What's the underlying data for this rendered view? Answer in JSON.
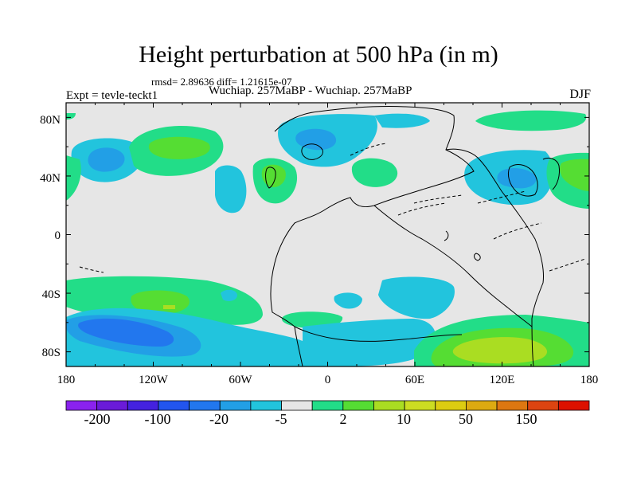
{
  "title": "Height perturbation at 500 hPa (in m)",
  "stats": "rmsd= 2.89636 diff= 1.21615e-07",
  "left_label": "Expt = tevle-teckt1",
  "center_label": "Wuchiap. 257MaBP - Wuchiap. 257MaBP",
  "right_label": "DJF",
  "colors": {
    "neutral": "#e6e6e6",
    "pos_light": "#22dd88",
    "pos_medium": "#55dd33",
    "pos_strong": "#aadd22",
    "neg_light": "#22c4dd",
    "neg_medium": "#229fe6",
    "neg_strong": "#2277ee"
  },
  "chart_data": {
    "type": "contour-map",
    "variable": "500 hPa height perturbation",
    "units": "m",
    "season": "DJF",
    "x_axis": {
      "range": [
        -180,
        180
      ],
      "ticks": [
        "180",
        "120W",
        "60W",
        "0",
        "60E",
        "120E",
        "180"
      ]
    },
    "y_axis": {
      "range": [
        -90,
        90
      ],
      "ticks": [
        "80N",
        "40N",
        "0",
        "40S",
        "80S"
      ]
    },
    "colorbar": {
      "labels": [
        "-200",
        "-100",
        "-20",
        "-5",
        "2",
        "10",
        "50",
        "150"
      ],
      "colors": [
        "#8a22ee",
        "#6a1bd8",
        "#4422e0",
        "#2255ee",
        "#2277ee",
        "#229fe6",
        "#22c4dd",
        "#e6e6e6",
        "#22dd88",
        "#55dd33",
        "#aadd22",
        "#ccdd22",
        "#ddcc11",
        "#ddaa11",
        "#dd7711",
        "#dd4411",
        "#dd1100"
      ]
    }
  }
}
